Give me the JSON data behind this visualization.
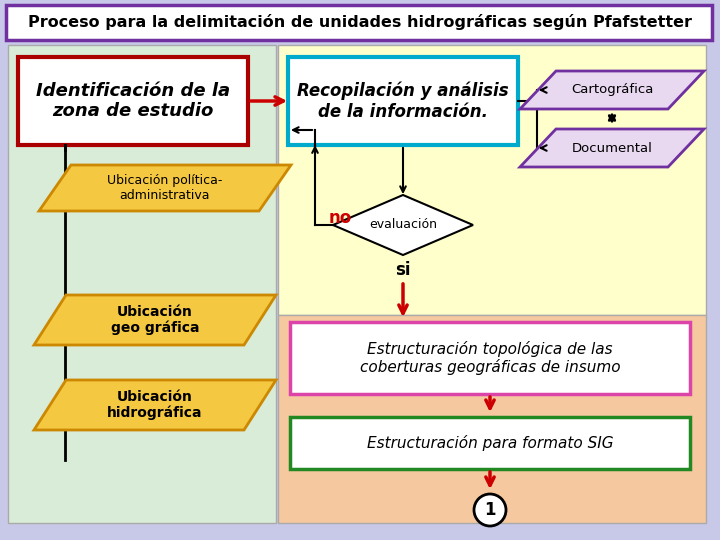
{
  "title": "Proceso para la delimitación de unidades hidrográficas según Pfafstetter",
  "title_bg": "#ffffff",
  "title_border": "#7030a0",
  "outer_bg": "#c8c8e8",
  "left_panel_bg": "#d8ecd8",
  "right_top_panel_bg": "#ffffcc",
  "right_bottom_panel_bg": "#f5c8a0",
  "box_identificacion_text": "Identificación de la\nzona de estudio",
  "box_identificacion_border": "#aa0000",
  "box_identificacion_bg": "#ffffff",
  "box_recopilacion_text": "Recopilación y análisis\nde la información.",
  "box_recopilacion_border": "#00aacc",
  "box_recopilacion_bg": "#ffffff",
  "parallelogram_politica_text": "Ubicación política-\nadministrativa",
  "parallelogram_geografica_text": "Ubicación\ngeo gráfica",
  "parallelogram_hidrografica_text": "Ubicación\nhidrográfica",
  "parallelogram_color": "#f5c842",
  "parallelogram_border": "#cc8800",
  "cartografica_text": "Cartográfica",
  "documental_text": "Documental",
  "cartografica_color": "#e8d8f0",
  "cartografica_border": "#7030a0",
  "diamond_text": "evaluación",
  "diamond_bg": "#ffffff",
  "diamond_border": "#000000",
  "no_text": "no",
  "si_text": "si",
  "estructuracion_topo_text": "Estructuración topológica de las\ncoberturas geográficas de insumo",
  "estructuracion_topo_bg": "#ffffff",
  "estructuracion_topo_border": "#dd44aa",
  "estructuracion_sig_text": "Estructuración para formato SIG",
  "estructuracion_sig_bg": "#ffffff",
  "estructuracion_sig_border": "#228822",
  "circle_1_text": "1",
  "circle_bg": "#ffffff",
  "circle_text_color": "#000000",
  "circle_border": "#000000"
}
